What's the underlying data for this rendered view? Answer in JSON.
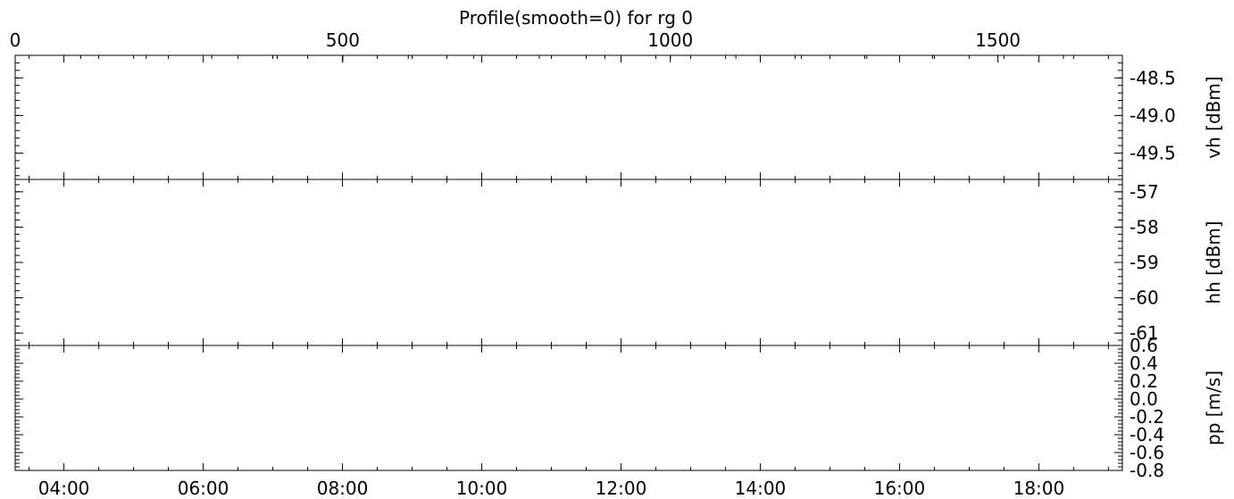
{
  "title": "Profile(smooth=0) for rg 0",
  "chart_data": {
    "type": "line",
    "title": "Profile(smooth=0) for rg 0",
    "top_axis": {
      "ticks": [
        0,
        500,
        1000,
        1500
      ],
      "range": [
        0,
        1690
      ]
    },
    "x_axis": {
      "ticks": [
        "04:00",
        "06:00",
        "08:00",
        "10:00",
        "12:00",
        "14:00",
        "16:00",
        "18:00"
      ],
      "range_hours": [
        3.3,
        19.2
      ]
    },
    "panels": [
      {
        "ylabel": "vh [dBm]",
        "ticks": [
          "-48.5",
          "-49.0",
          "-49.5"
        ],
        "tick_values": [
          -48.5,
          -49.0,
          -49.5
        ],
        "ylim": [
          -49.85,
          -48.2
        ],
        "series": []
      },
      {
        "ylabel": "hh [dBm]",
        "ticks": [
          "-57",
          "-58",
          "-59",
          "-60",
          "-61"
        ],
        "tick_values": [
          -57,
          -58,
          -59,
          -60,
          -61
        ],
        "ylim": [
          -61.35,
          -56.65
        ],
        "series": []
      },
      {
        "ylabel": "pp [m/s]",
        "ticks": [
          "0.6",
          "0.4",
          "0.2",
          "0.0",
          "-0.2",
          "-0.4",
          "-0.6",
          "-0.8"
        ],
        "tick_values": [
          0.6,
          0.4,
          0.2,
          0.0,
          -0.2,
          -0.4,
          -0.6,
          -0.8
        ],
        "ylim": [
          -0.8,
          0.6
        ],
        "series": []
      }
    ],
    "grid": false
  }
}
